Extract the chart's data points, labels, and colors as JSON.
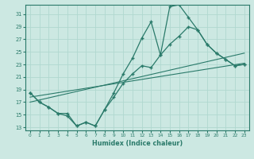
{
  "xlabel": "Humidex (Indice chaleur)",
  "x_ticks": [
    0,
    1,
    2,
    3,
    4,
    5,
    6,
    7,
    8,
    9,
    10,
    11,
    12,
    13,
    14,
    15,
    16,
    17,
    18,
    19,
    20,
    21,
    22,
    23
  ],
  "y_ticks": [
    13,
    15,
    17,
    19,
    21,
    23,
    25,
    27,
    29,
    31
  ],
  "xlim": [
    -0.5,
    23.5
  ],
  "ylim": [
    12.5,
    32.5
  ],
  "line_color": "#2a7a6a",
  "bg_color": "#cce8e2",
  "grid_color": "#b0d8d0",
  "curve1_x": [
    0,
    1,
    2,
    3,
    4,
    5,
    6,
    7,
    8,
    9,
    10,
    11,
    12,
    13,
    14,
    15,
    16,
    17,
    18,
    19,
    20,
    21,
    22,
    23
  ],
  "curve1_y": [
    18.5,
    17.0,
    16.2,
    15.2,
    15.2,
    13.2,
    13.8,
    13.2,
    15.8,
    18.5,
    21.5,
    24.0,
    27.2,
    29.8,
    24.5,
    32.2,
    32.5,
    30.5,
    28.5,
    26.2,
    24.8,
    23.8,
    22.8,
    23.0
  ],
  "curve2_x": [
    0,
    1,
    2,
    3,
    4,
    5,
    6,
    7,
    8,
    9,
    10,
    11,
    12,
    13,
    14,
    15,
    16,
    17,
    18,
    19,
    20,
    21,
    22,
    23
  ],
  "curve2_y": [
    18.5,
    17.0,
    16.2,
    15.2,
    14.8,
    13.2,
    13.8,
    13.2,
    15.8,
    17.8,
    20.0,
    21.5,
    22.8,
    22.5,
    24.5,
    26.2,
    27.5,
    29.0,
    28.5,
    26.2,
    24.8,
    23.8,
    22.8,
    23.0
  ],
  "trend1_x": [
    0,
    23
  ],
  "trend1_y": [
    17.8,
    23.2
  ],
  "trend2_x": [
    0,
    23
  ],
  "trend2_y": [
    17.0,
    24.8
  ]
}
